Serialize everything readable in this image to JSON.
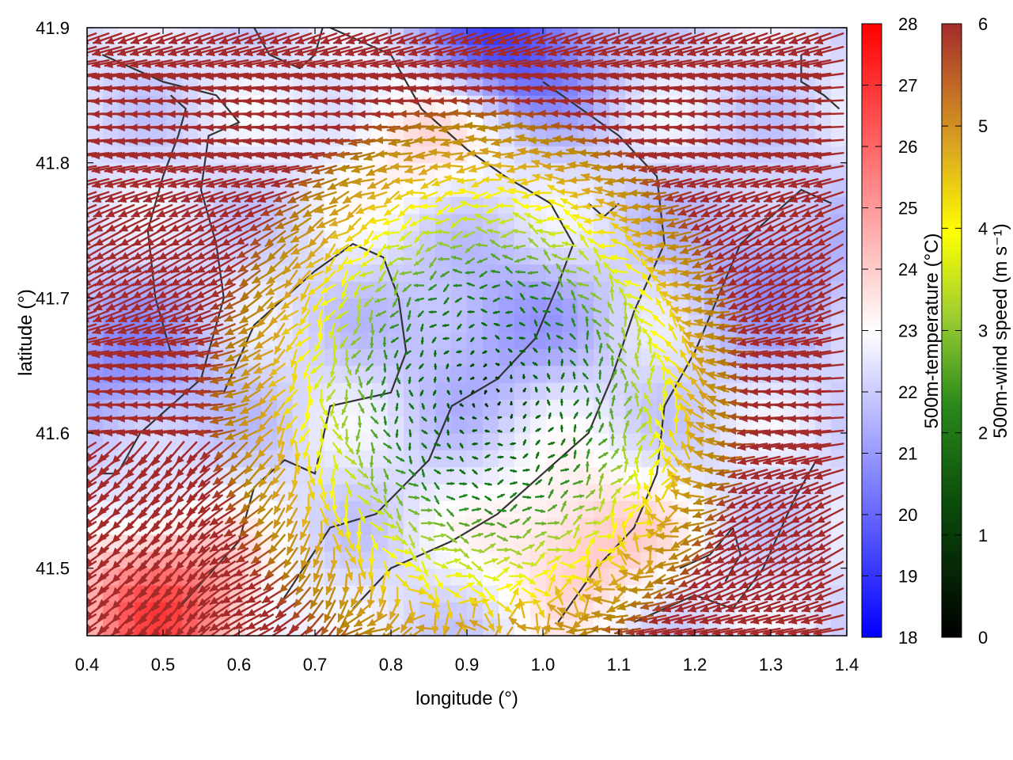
{
  "chart_data": {
    "type": "heatmap",
    "overlay": "vector field",
    "xlabel": "longitude (°)",
    "ylabel": "latitude (°)",
    "xlim": [
      0.4,
      1.4
    ],
    "ylim": [
      41.45,
      41.9
    ],
    "x_ticks": [
      "0.4",
      "0.5",
      "0.6",
      "0.7",
      "0.8",
      "0.9",
      "1.0",
      "1.1",
      "1.2",
      "1.3",
      "1.4"
    ],
    "y_ticks": [
      "41.5",
      "41.6",
      "41.7",
      "41.8",
      "41.9"
    ],
    "x_tick_values": [
      0.4,
      0.5,
      0.6,
      0.7,
      0.8,
      0.9,
      1.0,
      1.1,
      1.2,
      1.3,
      1.4
    ],
    "y_tick_values": [
      41.5,
      41.6,
      41.7,
      41.8,
      41.9
    ],
    "temperature_colorbar": {
      "label": "500m-temperature (°C)",
      "range": [
        18,
        28
      ],
      "ticks": [
        "18",
        "19",
        "20",
        "21",
        "22",
        "23",
        "24",
        "25",
        "26",
        "27",
        "28"
      ],
      "colors": [
        "#0000ff",
        "#ffffff",
        "#ff0000"
      ]
    },
    "wind_colorbar": {
      "label": "500m-wind speed (m s⁻¹)",
      "range": [
        0,
        6
      ],
      "ticks": [
        "0",
        "1",
        "2",
        "3",
        "4",
        "5",
        "6"
      ],
      "colors": [
        "#000000",
        "#006400",
        "#228b22",
        "#9acd32",
        "#ffff00",
        "#daa520",
        "#b8860b",
        "#a52a2a"
      ]
    },
    "calm_zone": {
      "center_lon": 0.93,
      "center_lat": 41.63,
      "radius_lon": 0.28,
      "radius_lat": 0.17,
      "min_speed": 0.3,
      "outer_speed": 6
    },
    "background_flow_direction": "from east-northeast",
    "temperature_field": {
      "base": 22.3,
      "warm_spots": [
        {
          "lon": 0.5,
          "lat": 41.47,
          "value": 26.5
        },
        {
          "lon": 1.05,
          "lat": 41.52,
          "value": 24.3
        },
        {
          "lon": 0.85,
          "lat": 41.83,
          "value": 24.0
        }
      ],
      "cool_spots": [
        {
          "lon": 0.95,
          "lat": 41.89,
          "value": 19.0
        },
        {
          "lon": 0.93,
          "lat": 41.68,
          "value": 21.0
        },
        {
          "lon": 1.3,
          "lat": 41.72,
          "value": 21.0
        },
        {
          "lon": 0.45,
          "lat": 41.65,
          "value": 20.8
        }
      ]
    },
    "contours": [
      [
        [
          0.42,
          41.88
        ],
        [
          0.5,
          41.86
        ],
        [
          0.57,
          41.85
        ],
        [
          0.6,
          41.83
        ],
        [
          0.56,
          41.82
        ],
        [
          0.55,
          41.78
        ],
        [
          0.57,
          41.74
        ],
        [
          0.58,
          41.7
        ],
        [
          0.55,
          41.64
        ],
        [
          0.47,
          41.6
        ],
        [
          0.44,
          41.57
        ],
        [
          0.42,
          41.57
        ]
      ],
      [
        [
          0.51,
          41.66
        ],
        [
          0.49,
          41.7
        ],
        [
          0.48,
          41.75
        ],
        [
          0.5,
          41.79
        ],
        [
          0.52,
          41.82
        ],
        [
          0.53,
          41.84
        ],
        [
          0.51,
          41.85
        ]
      ],
      [
        [
          0.52,
          41.47
        ],
        [
          0.6,
          41.52
        ],
        [
          0.62,
          41.56
        ],
        [
          0.66,
          41.58
        ],
        [
          0.7,
          41.57
        ],
        [
          0.72,
          41.62
        ],
        [
          0.8,
          41.63
        ],
        [
          0.82,
          41.66
        ],
        [
          0.81,
          41.7
        ],
        [
          0.79,
          41.73
        ],
        [
          0.75,
          41.74
        ],
        [
          0.7,
          41.72
        ],
        [
          0.66,
          41.7
        ],
        [
          0.62,
          41.68
        ],
        [
          0.58,
          41.63
        ]
      ],
      [
        [
          0.65,
          41.47
        ],
        [
          0.72,
          41.53
        ],
        [
          0.78,
          41.54
        ],
        [
          0.85,
          41.58
        ],
        [
          0.88,
          41.62
        ],
        [
          0.94,
          41.64
        ],
        [
          0.99,
          41.67
        ],
        [
          1.02,
          41.71
        ],
        [
          1.04,
          41.74
        ],
        [
          1.01,
          41.77
        ],
        [
          0.95,
          41.79
        ],
        [
          0.9,
          41.81
        ],
        [
          0.84,
          41.84
        ],
        [
          0.8,
          41.88
        ],
        [
          0.72,
          41.9
        ]
      ],
      [
        [
          0.75,
          41.47
        ],
        [
          0.8,
          41.5
        ],
        [
          0.88,
          41.52
        ],
        [
          0.94,
          41.54
        ],
        [
          1.0,
          41.57
        ],
        [
          1.06,
          41.6
        ],
        [
          1.09,
          41.64
        ],
        [
          1.12,
          41.69
        ],
        [
          1.16,
          41.74
        ],
        [
          1.15,
          41.79
        ],
        [
          1.1,
          41.82
        ],
        [
          1.05,
          41.84
        ],
        [
          1.0,
          41.86
        ]
      ],
      [
        [
          1.02,
          41.46
        ],
        [
          1.07,
          41.5
        ],
        [
          1.12,
          41.53
        ],
        [
          1.15,
          41.57
        ],
        [
          1.16,
          41.62
        ],
        [
          1.2,
          41.66
        ],
        [
          1.23,
          41.7
        ],
        [
          1.26,
          41.74
        ],
        [
          1.3,
          41.76
        ],
        [
          1.34,
          41.78
        ],
        [
          1.38,
          41.77
        ]
      ],
      [
        [
          1.12,
          41.46
        ],
        [
          1.2,
          41.48
        ],
        [
          1.25,
          41.47
        ],
        [
          1.29,
          41.5
        ],
        [
          1.33,
          41.55
        ],
        [
          1.36,
          41.58
        ]
      ],
      [
        [
          1.34,
          41.88
        ],
        [
          1.34,
          41.86
        ],
        [
          1.37,
          41.85
        ],
        [
          1.39,
          41.84
        ]
      ],
      [
        [
          0.62,
          41.9
        ],
        [
          0.64,
          41.88
        ],
        [
          0.68,
          41.87
        ],
        [
          0.7,
          41.88
        ],
        [
          0.71,
          41.9
        ]
      ],
      [
        [
          1.1,
          41.77
        ],
        [
          1.08,
          41.76
        ],
        [
          1.06,
          41.77
        ]
      ],
      [
        [
          1.18,
          41.5
        ],
        [
          1.22,
          41.51
        ],
        [
          1.25,
          41.53
        ],
        [
          1.26,
          41.51
        ],
        [
          1.24,
          41.49
        ]
      ]
    ]
  }
}
